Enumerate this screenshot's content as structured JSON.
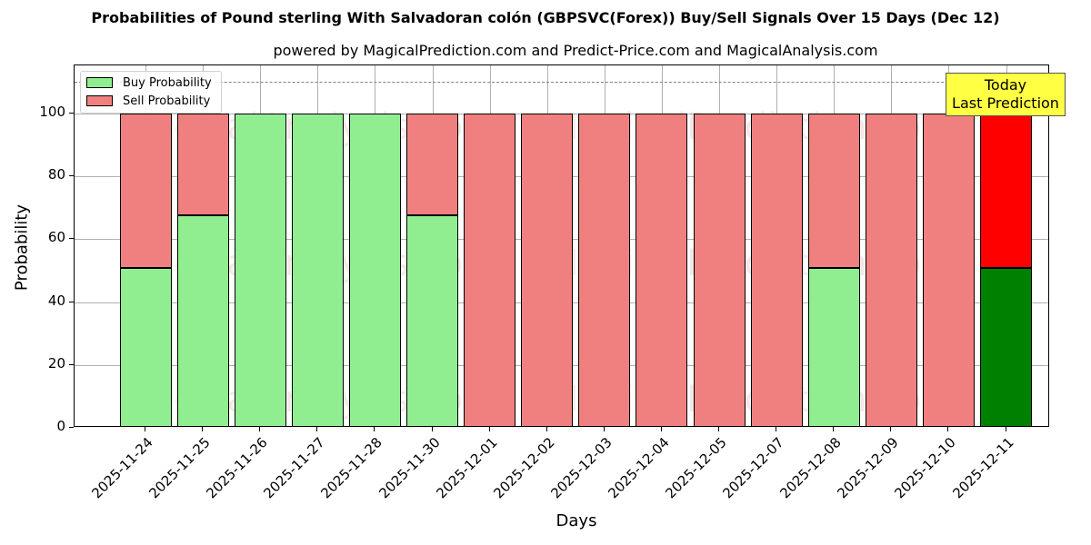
{
  "title": "Probabilities of Pound sterling With Salvadoran colón (GBPSVC(Forex)) Buy/Sell Signals Over 15 Days (Dec 12)",
  "subtitle": "powered by MagicalPrediction.com and Predict-Price.com and MagicalAnalysis.com",
  "xlabel": "Days",
  "ylabel": "Probability",
  "legend": {
    "buy": "Buy Probability",
    "sell": "Sell Probability"
  },
  "annotation": {
    "line1": "Today",
    "line2": "Last Prediction"
  },
  "watermarks": [
    "MagicalAnalysis.com",
    "MagicalPrediction.com"
  ],
  "colors": {
    "buy": "#90ee90",
    "sell": "#f08080",
    "buy_today": "#008000",
    "sell_today": "#ff0000",
    "annotation_bg": "#ffff44",
    "threshold_line": "#808080"
  },
  "yticks": [
    "0",
    "20",
    "40",
    "60",
    "80",
    "100"
  ],
  "chart_data": {
    "type": "bar",
    "stacked": true,
    "title": "Probabilities of Pound sterling With Salvadoran colón (GBPSVC(Forex)) Buy/Sell Signals Over 15 Days (Dec 12)",
    "subtitle": "powered by MagicalPrediction.com and Predict-Price.com and MagicalAnalysis.com",
    "xlabel": "Days",
    "ylabel": "Probability",
    "ylim": [
      0,
      115
    ],
    "grid": true,
    "legend_position": "upper left",
    "threshold_line": 110,
    "categories": [
      "2025-11-24",
      "2025-11-25",
      "2025-11-26",
      "2025-11-27",
      "2025-11-28",
      "2025-11-30",
      "2025-12-01",
      "2025-12-02",
      "2025-12-03",
      "2025-12-04",
      "2025-12-05",
      "2025-12-07",
      "2025-12-08",
      "2025-12-09",
      "2025-12-10",
      "2025-12-11"
    ],
    "series": [
      {
        "name": "Buy Probability",
        "values": [
          51,
          67.5,
          100,
          100,
          100,
          67.5,
          0,
          0,
          0,
          0,
          0,
          0,
          51,
          0,
          0,
          51
        ]
      },
      {
        "name": "Sell Probability",
        "values": [
          49,
          32.5,
          0,
          0,
          0,
          32.5,
          100,
          100,
          100,
          100,
          100,
          100,
          49,
          100,
          100,
          49
        ]
      }
    ],
    "annotations": [
      {
        "text": "Today\nLast Prediction",
        "x": "2025-12-11"
      }
    ]
  }
}
